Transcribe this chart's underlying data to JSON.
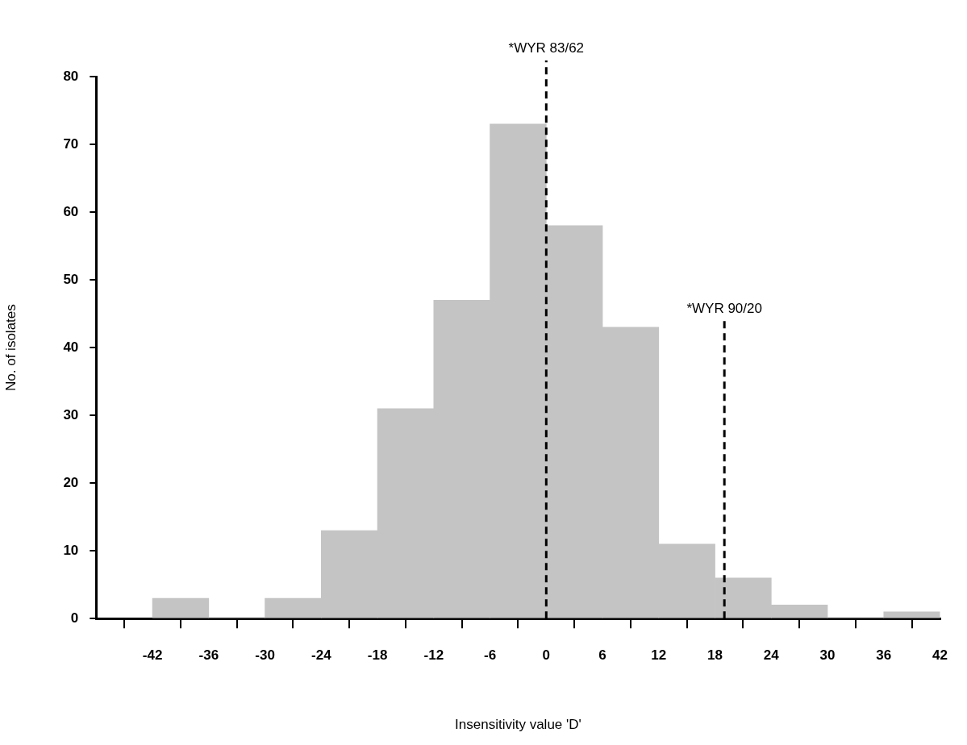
{
  "chart_data": {
    "type": "histogram",
    "xlabel": "Insensitivity value 'D'",
    "ylabel": "No. of isolates",
    "bins": [
      -42,
      -36,
      -30,
      -24,
      -18,
      -12,
      -6,
      0,
      6,
      12,
      18,
      24,
      30,
      36,
      42
    ],
    "values": [
      3,
      0,
      3,
      13,
      31,
      47,
      73,
      58,
      43,
      11,
      6,
      2,
      0,
      1
    ],
    "color": "#c4c4c4",
    "xlim": [
      -48,
      42
    ],
    "xticks": [
      -42,
      -36,
      -30,
      -24,
      -18,
      -12,
      -6,
      0,
      6,
      12,
      18,
      24,
      30,
      36,
      42
    ],
    "ylim": [
      0,
      80
    ],
    "yticks": [
      0,
      10,
      20,
      30,
      40,
      50,
      60,
      70,
      80
    ],
    "grid": false,
    "legend": false,
    "ref_lines": [
      {
        "axis": "x",
        "value": 0,
        "label": "*WYR 83/62",
        "line_style": "dashed",
        "color": "#000000"
      },
      {
        "axis": "x",
        "value": 19,
        "label": "*WYR 90/20",
        "line_style": "dashed",
        "color": "#000000"
      }
    ]
  }
}
